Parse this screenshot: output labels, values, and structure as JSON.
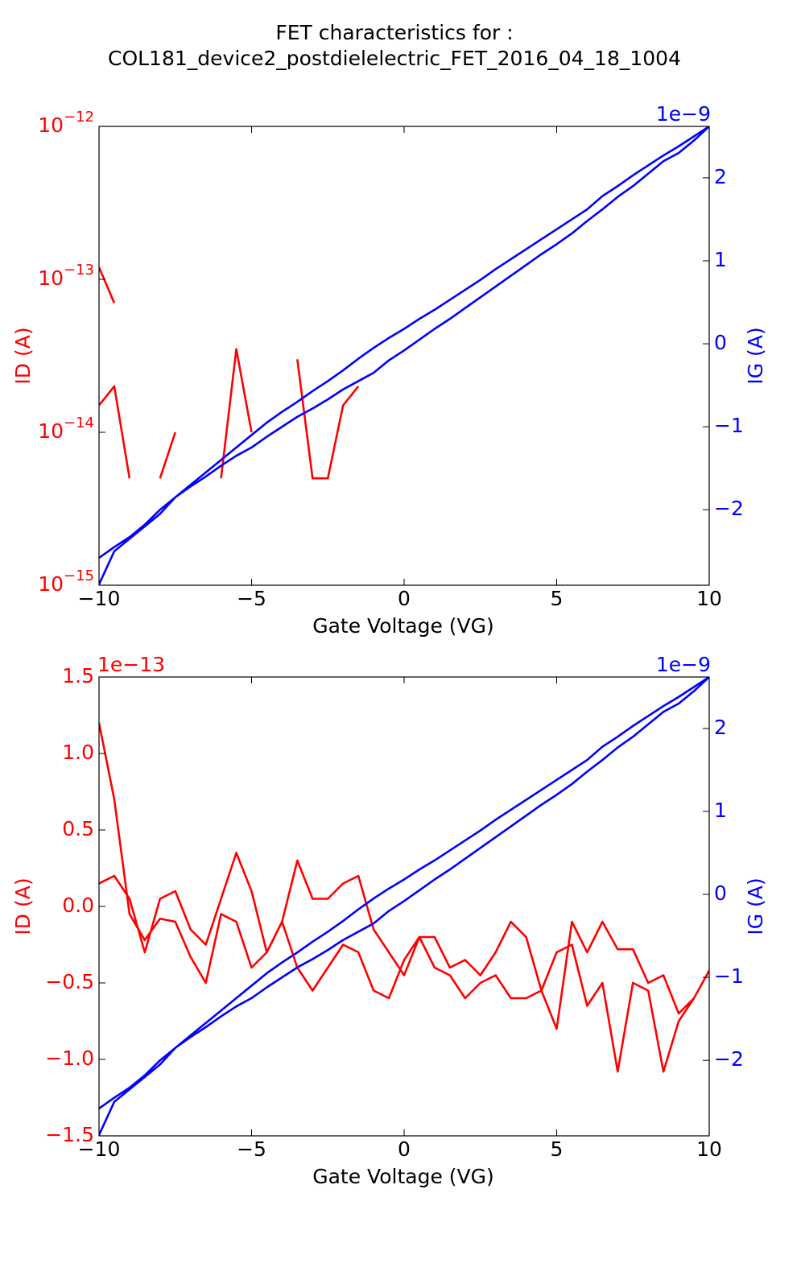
{
  "title": [
    "FET characteristics for :",
    "COL181_device2_postdielelectric_FET_2016_04_18_1004"
  ],
  "chart_data": [
    {
      "type": "line",
      "x": [
        -10,
        -9.5,
        -9,
        -8.5,
        -8,
        -7.5,
        -7,
        -6.5,
        -6,
        -5.5,
        -5,
        -4.5,
        -4,
        -3.5,
        -3,
        -2.5,
        -2,
        -1.5,
        -1,
        -0.5,
        0,
        0.5,
        1,
        1.5,
        2,
        2.5,
        3,
        3.5,
        4,
        4.5,
        5,
        5.5,
        6,
        6.5,
        7,
        7.5,
        8,
        8.5,
        9,
        9.5,
        10,
        9.5,
        9,
        8.5,
        8,
        7.5,
        7,
        6.5,
        6,
        5.5,
        5,
        4.5,
        4,
        3.5,
        3,
        2.5,
        2,
        1.5,
        1,
        0.5,
        0,
        -0.5,
        -1,
        -1.5,
        -2,
        -2.5,
        -3,
        -3.5,
        -4,
        -4.5,
        -5,
        -5.5,
        -6,
        -6.5,
        -7,
        -7.5,
        -8,
        -8.5,
        -9,
        -9.5,
        -10
      ],
      "xlim": [
        -10,
        10
      ],
      "xticks": [
        {
          "value": -10,
          "label": "−10"
        },
        {
          "value": -5,
          "label": "−5"
        },
        0,
        5,
        10
      ],
      "xlabel": "Gate Voltage (VG)",
      "ylabel": "ID (A)",
      "ylog": true,
      "ylim": [
        1e-15,
        1e-12
      ],
      "yticks": [
        {
          "value": 1e-15,
          "label": "10−15"
        },
        {
          "value": 1e-14,
          "label": "10−14"
        },
        {
          "value": 1e-13,
          "label": "10−13"
        },
        {
          "value": 1e-12,
          "label": "10−12"
        }
      ],
      "y2label": "IG (A)",
      "y2_offset": "1e−9",
      "y2lim": [
        -2.91,
        2.62
      ],
      "y2ticks": [
        {
          "value": -2,
          "label": "−2"
        },
        {
          "value": -1,
          "label": "−1"
        },
        0,
        1,
        2
      ],
      "series": [
        {
          "color": "#ff0000",
          "values": [
            1.2e-13,
            7e-14,
            null,
            null,
            null,
            null,
            null,
            null,
            null,
            null,
            null,
            null,
            null,
            null,
            null,
            null,
            null,
            null,
            null,
            null,
            null,
            null,
            null,
            null,
            null,
            null,
            null,
            null,
            null,
            null,
            null,
            null,
            null,
            null,
            null,
            null,
            null,
            null,
            null,
            null,
            null,
            null,
            null,
            null,
            null,
            null,
            null,
            null,
            null,
            null,
            null,
            null,
            null,
            null,
            null,
            null,
            null,
            null,
            null,
            null,
            null,
            null,
            null,
            2e-14,
            1.5e-14,
            5e-15,
            5e-15,
            3e-14,
            null,
            null,
            1e-14,
            3.5e-14,
            5e-15,
            null,
            null,
            1e-14,
            5e-15,
            null,
            5e-15,
            2e-14,
            1.5e-14
          ]
        },
        {
          "color": "#0000ff",
          "axis": "y2",
          "values": [
            -2.9,
            -2.5,
            -2.35,
            -2.2,
            -2.05,
            -1.85,
            -1.72,
            -1.6,
            -1.47,
            -1.35,
            -1.25,
            -1.12,
            -1.0,
            -0.88,
            -0.78,
            -0.67,
            -0.55,
            -0.45,
            -0.35,
            -0.2,
            -0.08,
            0.05,
            0.18,
            0.3,
            0.43,
            0.56,
            0.69,
            0.82,
            0.95,
            1.08,
            1.2,
            1.33,
            1.48,
            1.62,
            1.77,
            1.9,
            2.05,
            2.2,
            2.3,
            2.45,
            2.62,
            2.5,
            2.38,
            2.27,
            2.15,
            2.03,
            1.9,
            1.78,
            1.62,
            1.5,
            1.38,
            1.26,
            1.14,
            1.02,
            0.9,
            0.77,
            0.65,
            0.53,
            0.41,
            0.3,
            0.18,
            0.07,
            -0.05,
            -0.18,
            -0.32,
            -0.45,
            -0.57,
            -0.7,
            -0.82,
            -0.95,
            -1.1,
            -1.25,
            -1.4,
            -1.55,
            -1.7,
            -1.85,
            -2.0,
            -2.18,
            -2.33,
            -2.45,
            -2.58
          ]
        }
      ]
    },
    {
      "type": "line",
      "x": [
        -10,
        -9.5,
        -9,
        -8.5,
        -8,
        -7.5,
        -7,
        -6.5,
        -6,
        -5.5,
        -5,
        -4.5,
        -4,
        -3.5,
        -3,
        -2.5,
        -2,
        -1.5,
        -1,
        -0.5,
        0,
        0.5,
        1,
        1.5,
        2,
        2.5,
        3,
        3.5,
        4,
        4.5,
        5,
        5.5,
        6,
        6.5,
        7,
        7.5,
        8,
        8.5,
        9,
        9.5,
        10,
        9.5,
        9,
        8.5,
        8,
        7.5,
        7,
        6.5,
        6,
        5.5,
        5,
        4.5,
        4,
        3.5,
        3,
        2.5,
        2,
        1.5,
        1,
        0.5,
        0,
        -0.5,
        -1,
        -1.5,
        -2,
        -2.5,
        -3,
        -3.5,
        -4,
        -4.5,
        -5,
        -5.5,
        -6,
        -6.5,
        -7,
        -7.5,
        -8,
        -8.5,
        -9,
        -9.5,
        -10
      ],
      "xlim": [
        -10,
        10
      ],
      "xticks": [
        {
          "value": -10,
          "label": "−10"
        },
        {
          "value": -5,
          "label": "−5"
        },
        0,
        5,
        10
      ],
      "xlabel": "Gate Voltage (VG)",
      "ylabel": "ID (A)",
      "y_offset": "1e−13",
      "ylim": [
        -1.5,
        1.5
      ],
      "yticks": [
        {
          "value": -1.5,
          "label": "−1.5"
        },
        {
          "value": -1,
          "label": "−1.0"
        },
        {
          "value": -0.5,
          "label": "−0.5"
        },
        {
          "value": 0,
          "label": "0.0"
        },
        0.5,
        {
          "value": 1,
          "label": "1.0"
        },
        1.5
      ],
      "y2label": "IG (A)",
      "y2_offset": "1e−9",
      "y2lim": [
        -2.91,
        2.62
      ],
      "y2ticks": [
        {
          "value": -2,
          "label": "−2"
        },
        {
          "value": -1,
          "label": "−1"
        },
        0,
        1,
        2
      ],
      "series": [
        {
          "color": "#ff0000",
          "values": [
            1.2,
            0.7,
            -0.05,
            -0.22,
            -0.08,
            -0.1,
            -0.33,
            -0.5,
            -0.05,
            -0.1,
            -0.4,
            -0.3,
            -0.1,
            -0.4,
            -0.55,
            -0.4,
            -0.25,
            -0.3,
            -0.55,
            -0.6,
            -0.35,
            -0.2,
            -0.4,
            -0.45,
            -0.6,
            -0.5,
            -0.45,
            -0.6,
            -0.6,
            -0.55,
            -0.3,
            -0.25,
            -0.65,
            -0.5,
            -1.08,
            -0.5,
            -0.55,
            -1.08,
            -0.75,
            -0.6,
            -0.42,
            -0.6,
            -0.7,
            -0.45,
            -0.5,
            -0.28,
            -0.28,
            -0.1,
            -0.3,
            -0.1,
            -0.8,
            -0.55,
            -0.2,
            -0.1,
            -0.3,
            -0.45,
            -0.35,
            -0.4,
            -0.2,
            -0.2,
            -0.45,
            -0.3,
            -0.15,
            0.2,
            0.15,
            0.05,
            0.05,
            0.3,
            -0.1,
            -0.3,
            0.1,
            0.35,
            0.05,
            -0.25,
            -0.15,
            0.1,
            0.05,
            -0.3,
            0.05,
            0.2,
            0.15
          ]
        },
        {
          "color": "#0000ff",
          "axis": "y2",
          "values": [
            -2.9,
            -2.5,
            -2.35,
            -2.2,
            -2.05,
            -1.85,
            -1.72,
            -1.6,
            -1.47,
            -1.35,
            -1.25,
            -1.12,
            -1.0,
            -0.88,
            -0.78,
            -0.67,
            -0.55,
            -0.45,
            -0.35,
            -0.2,
            -0.08,
            0.05,
            0.18,
            0.3,
            0.43,
            0.56,
            0.69,
            0.82,
            0.95,
            1.08,
            1.2,
            1.33,
            1.48,
            1.62,
            1.77,
            1.9,
            2.05,
            2.2,
            2.3,
            2.45,
            2.62,
            2.5,
            2.38,
            2.27,
            2.15,
            2.03,
            1.9,
            1.78,
            1.62,
            1.5,
            1.38,
            1.26,
            1.14,
            1.02,
            0.9,
            0.77,
            0.65,
            0.53,
            0.41,
            0.3,
            0.18,
            0.07,
            -0.05,
            -0.18,
            -0.32,
            -0.45,
            -0.57,
            -0.7,
            -0.82,
            -0.95,
            -1.1,
            -1.25,
            -1.4,
            -1.55,
            -1.7,
            -1.85,
            -2.0,
            -2.18,
            -2.33,
            -2.45,
            -2.58
          ]
        }
      ]
    }
  ]
}
